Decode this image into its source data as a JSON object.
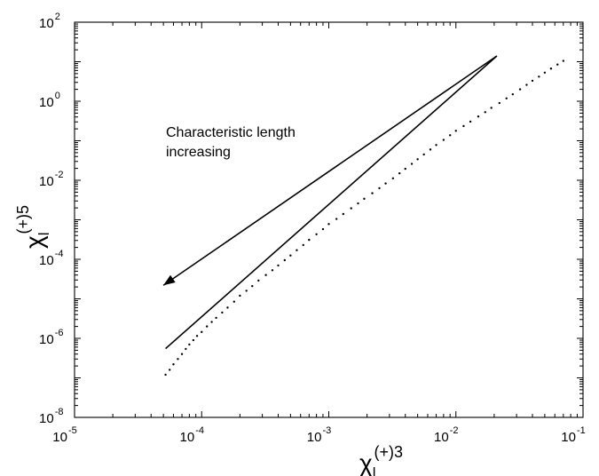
{
  "chart_data": {
    "type": "scatter",
    "xscale": "log",
    "yscale": "log",
    "xlim": [
      1e-05,
      0.1
    ],
    "ylim": [
      1e-08,
      100
    ],
    "grid": false,
    "xlabel": {
      "base": "χ",
      "sub": "l",
      "sup": "(+)3"
    },
    "ylabel": {
      "base": "χ",
      "sub": "l",
      "sup": "(+)5"
    },
    "xticks": [
      {
        "value": 1e-05,
        "base": "10",
        "exp": "-5"
      },
      {
        "value": 0.0001,
        "base": "10",
        "exp": "-4"
      },
      {
        "value": 0.001,
        "base": "10",
        "exp": "-3"
      },
      {
        "value": 0.01,
        "base": "10",
        "exp": "-2"
      },
      {
        "value": 0.1,
        "base": "10",
        "exp": "-1"
      }
    ],
    "yticks": [
      {
        "value": 1e-08,
        "base": "10",
        "exp": "-8"
      },
      {
        "value": 1e-06,
        "base": "10",
        "exp": "-6"
      },
      {
        "value": 0.0001,
        "base": "10",
        "exp": "-4"
      },
      {
        "value": 0.01,
        "base": "10",
        "exp": "-2"
      },
      {
        "value": 1,
        "base": "10",
        "exp": "0"
      },
      {
        "value": 100,
        "base": "10",
        "exp": "2"
      }
    ],
    "series": [
      {
        "kind": "points",
        "x": [
          5.2e-05,
          5.6e-05,
          6e-05,
          6.5e-05,
          7e-05,
          7.5e-05,
          8e-05,
          8.6e-05,
          9.2e-05,
          0.0001,
          0.00011,
          0.00012,
          0.00013,
          0.000145,
          0.00016,
          0.00018,
          0.0002,
          0.000225,
          0.00025,
          0.00028,
          0.00032,
          0.00036,
          0.0004,
          0.00045,
          0.0005,
          0.00056,
          0.00063,
          0.0007,
          0.0008,
          0.0009,
          0.001,
          0.00115,
          0.0013,
          0.0015,
          0.0017,
          0.0019,
          0.0022,
          0.0025,
          0.0028,
          0.0032,
          0.0036,
          0.004,
          0.0045,
          0.005,
          0.0056,
          0.0063,
          0.007,
          0.008,
          0.009,
          0.01,
          0.0115,
          0.013,
          0.015,
          0.017,
          0.019,
          0.022,
          0.025,
          0.028,
          0.032,
          0.036,
          0.04,
          0.045,
          0.05,
          0.056,
          0.063,
          0.07
        ],
        "y": [
          1.2e-07,
          1.6e-07,
          2.2e-07,
          3e-07,
          4e-07,
          5.4e-07,
          7e-07,
          9e-07,
          1.15e-06,
          1.45e-06,
          2e-06,
          2.6e-06,
          3.3e-06,
          4.5e-06,
          6e-06,
          8.5e-06,
          1.2e-05,
          1.6e-05,
          2.1e-05,
          2.9e-05,
          4e-05,
          5.3e-05,
          7e-05,
          9.5e-05,
          0.000125,
          0.00017,
          0.00023,
          0.00031,
          0.00043,
          0.00058,
          0.00078,
          0.00105,
          0.0014,
          0.00195,
          0.0026,
          0.0034,
          0.0047,
          0.0063,
          0.0083,
          0.0112,
          0.015,
          0.0195,
          0.026,
          0.034,
          0.045,
          0.06,
          0.078,
          0.105,
          0.138,
          0.178,
          0.235,
          0.305,
          0.41,
          0.53,
          0.68,
          0.9,
          1.18,
          1.5,
          2.0,
          2.6,
          3.3,
          4.2,
          5.3,
          6.7,
          8.5,
          10.5
        ]
      },
      {
        "kind": "line",
        "x": [
          5.2e-05,
          0.021
        ],
        "y": [
          5.5e-07,
          14
        ]
      }
    ],
    "annotations": [
      {
        "text_lines": [
          "Characteristic length",
          "increasing"
        ]
      },
      {
        "kind": "arrow",
        "from": [
          0.021,
          14
        ],
        "to": [
          5e-05,
          2.2e-05
        ]
      }
    ]
  }
}
